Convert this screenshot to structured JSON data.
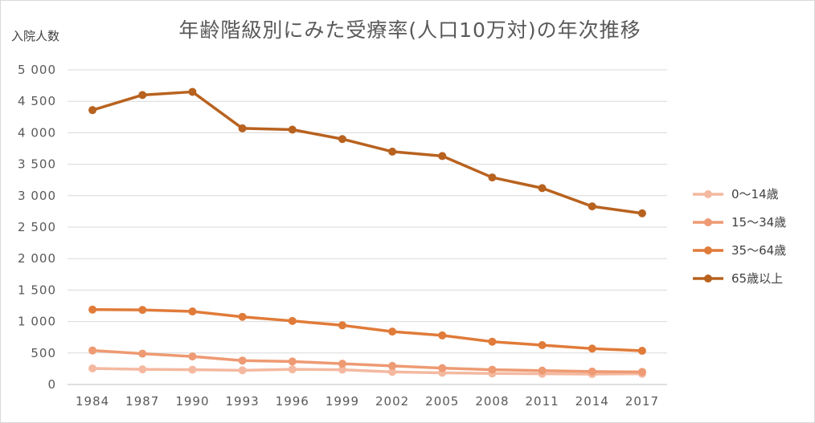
{
  "chart_data": {
    "type": "line",
    "title": "年齢階級別にみた受療率(人口10万対)の年次推移",
    "ylabel": "入院人数",
    "xlabel": "",
    "categories": [
      "1984",
      "1987",
      "1990",
      "1993",
      "1996",
      "1999",
      "2002",
      "2005",
      "2008",
      "2011",
      "2014",
      "2017"
    ],
    "ylim": [
      0,
      5000
    ],
    "yticks": [
      0,
      500,
      1000,
      1500,
      2000,
      2500,
      3000,
      3500,
      4000,
      4500,
      5000
    ],
    "ytick_labels": [
      "0",
      "500",
      "1 000",
      "1 500",
      "2 000",
      "2 500",
      "3 000",
      "3 500",
      "4 000",
      "4 500",
      "5 000"
    ],
    "grid": true,
    "legend_position": "right",
    "series": [
      {
        "name": "0～14歳",
        "color": "#f4b9a0",
        "values": [
          255,
          240,
          235,
          225,
          240,
          235,
          200,
          185,
          175,
          170,
          165,
          170
        ]
      },
      {
        "name": "15～34歳",
        "color": "#ee9a73",
        "values": [
          540,
          490,
          445,
          380,
          365,
          330,
          295,
          260,
          235,
          220,
          205,
          200
        ]
      },
      {
        "name": "35～64歳",
        "color": "#e07b39",
        "values": [
          1190,
          1185,
          1160,
          1075,
          1010,
          940,
          840,
          780,
          680,
          625,
          570,
          535
        ]
      },
      {
        "name": "65歳以上",
        "color": "#b8621f",
        "values": [
          4360,
          4600,
          4650,
          4070,
          4050,
          3900,
          3700,
          3630,
          3290,
          3120,
          2830,
          2720
        ]
      }
    ]
  }
}
